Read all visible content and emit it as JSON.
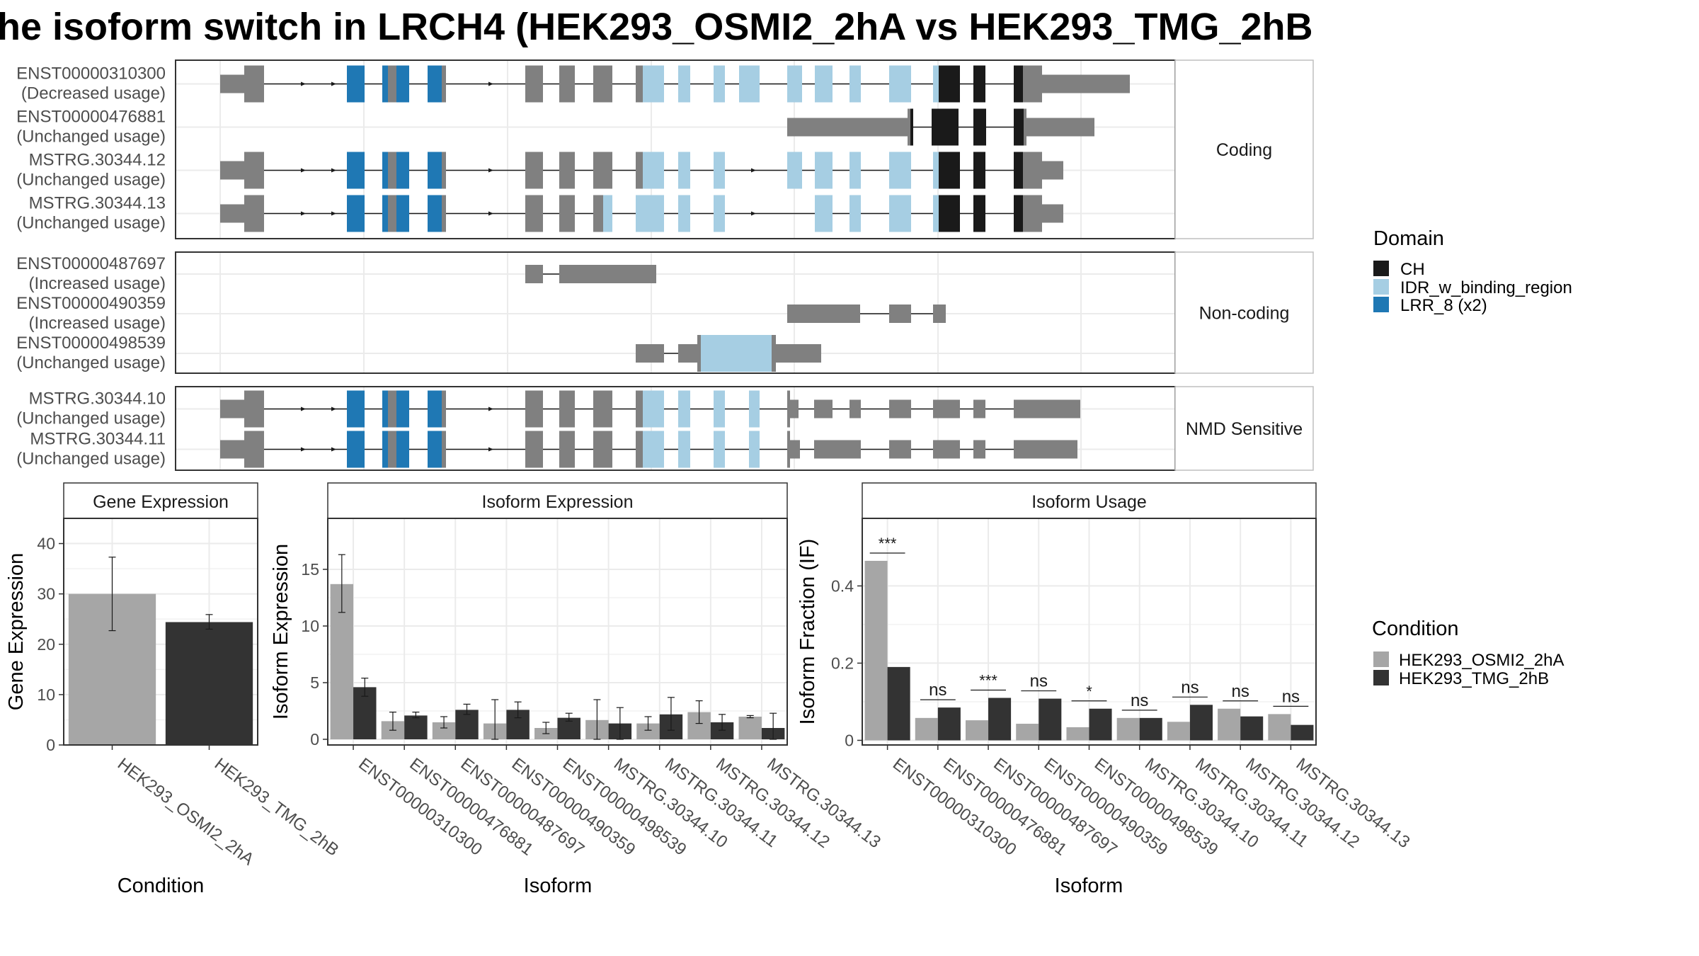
{
  "title": "he isoform switch in LRCH4 (HEK293_OSMI2_2hA vs HEK293_TMG_2hB",
  "colors": {
    "exon": "#808080",
    "CH": "#1a1a1a",
    "IDR_w_binding_region": "#a6cee3",
    "LRR_8 (x2)": "#1f78b4",
    "cond_A": "#a6a6a6",
    "cond_B": "#333333",
    "grid": "#ebebeb",
    "panel_border": "#333333"
  },
  "domain_legend": {
    "title": "Domain",
    "items": [
      "CH",
      "IDR_w_binding_region",
      "LRR_8 (x2)"
    ]
  },
  "condition_legend": {
    "title": "Condition",
    "items": [
      "HEK293_OSMI2_2hA",
      "HEK293_TMG_2hB"
    ]
  },
  "structure_groups": [
    {
      "label": "Coding",
      "transcripts": [
        {
          "name": "ENST00000310300",
          "usage": "(Decreased usage)"
        },
        {
          "name": "ENST00000476881",
          "usage": "(Unchanged usage)"
        },
        {
          "name": "MSTRG.30344.12",
          "usage": "(Unchanged usage)"
        },
        {
          "name": "MSTRG.30344.13",
          "usage": "(Unchanged usage)"
        }
      ]
    },
    {
      "label": "Non-coding",
      "transcripts": [
        {
          "name": "ENST00000487697",
          "usage": "(Increased usage)"
        },
        {
          "name": "ENST00000490359",
          "usage": "(Increased usage)"
        },
        {
          "name": "ENST00000498539",
          "usage": "(Unchanged usage)"
        }
      ]
    },
    {
      "label": "NMD Sensitive",
      "transcripts": [
        {
          "name": "MSTRG.30344.10",
          "usage": "(Unchanged usage)"
        },
        {
          "name": "MSTRG.30344.11",
          "usage": "(Unchanged usage)"
        }
      ]
    }
  ],
  "chart_data": [
    {
      "type": "bar",
      "panel_title": "Gene Expression",
      "xlabel": "Condition",
      "ylabel": "Gene Expression",
      "categories": [
        "HEK293_OSMI2_2hA",
        "HEK293_TMG_2hB"
      ],
      "values": [
        30.0,
        24.4
      ],
      "error": [
        [
          22.7,
          37.3
        ],
        [
          23.0,
          25.9
        ]
      ],
      "yticks": [
        0,
        10,
        20,
        30,
        40
      ],
      "ylim": [
        0,
        45
      ]
    },
    {
      "type": "bar",
      "panel_title": "Isoform Expression",
      "xlabel": "Isoform",
      "ylabel": "Isoform Expression",
      "categories": [
        "ENST00000310300",
        "ENST00000476881",
        "ENST00000487697",
        "ENST00000490359",
        "ENST00000498539",
        "MSTRG.30344.10",
        "MSTRG.30344.11",
        "MSTRG.30344.12",
        "MSTRG.30344.13"
      ],
      "series": [
        {
          "name": "HEK293_OSMI2_2hA",
          "values": [
            13.7,
            1.6,
            1.5,
            1.4,
            1.0,
            1.7,
            1.4,
            2.4,
            2.0
          ],
          "error": [
            [
              11.2,
              16.3
            ],
            [
              0.8,
              2.4
            ],
            [
              1.0,
              2.0
            ],
            [
              0.0,
              3.5
            ],
            [
              0.5,
              1.5
            ],
            [
              0.0,
              3.5
            ],
            [
              0.8,
              2.0
            ],
            [
              1.4,
              3.4
            ],
            [
              1.9,
              2.1
            ]
          ]
        },
        {
          "name": "HEK293_TMG_2hB",
          "values": [
            4.6,
            2.1,
            2.6,
            2.6,
            1.9,
            1.4,
            2.2,
            1.5,
            1.0
          ],
          "error": [
            [
              3.8,
              5.4
            ],
            [
              1.9,
              2.4
            ],
            [
              2.2,
              3.1
            ],
            [
              1.9,
              3.3
            ],
            [
              1.6,
              2.3
            ],
            [
              0.0,
              2.8
            ],
            [
              0.8,
              3.7
            ],
            [
              0.8,
              2.2
            ],
            [
              0.0,
              2.3
            ]
          ]
        }
      ],
      "yticks": [
        0,
        5,
        10,
        15
      ],
      "ylim": [
        -0.5,
        19.5
      ]
    },
    {
      "type": "bar",
      "panel_title": "Isoform Usage",
      "xlabel": "Isoform",
      "ylabel": "Isoform Fraction (IF)",
      "categories": [
        "ENST00000310300",
        "ENST00000476881",
        "ENST00000487697",
        "ENST00000490359",
        "ENST00000498539",
        "MSTRG.30344.10",
        "MSTRG.30344.11",
        "MSTRG.30344.12",
        "MSTRG.30344.13"
      ],
      "series": [
        {
          "name": "HEK293_OSMI2_2hA",
          "values": [
            0.465,
            0.058,
            0.052,
            0.043,
            0.034,
            0.058,
            0.048,
            0.082,
            0.068
          ]
        },
        {
          "name": "HEK293_TMG_2hB",
          "values": [
            0.19,
            0.085,
            0.11,
            0.108,
            0.082,
            0.058,
            0.092,
            0.062,
            0.04
          ]
        }
      ],
      "significance": [
        "***",
        "ns",
        "***",
        "ns",
        "*",
        "ns",
        "ns",
        "ns",
        "ns"
      ],
      "yticks": [
        0.0,
        0.2,
        0.4
      ],
      "ylim": [
        -0.012,
        0.575
      ]
    }
  ]
}
